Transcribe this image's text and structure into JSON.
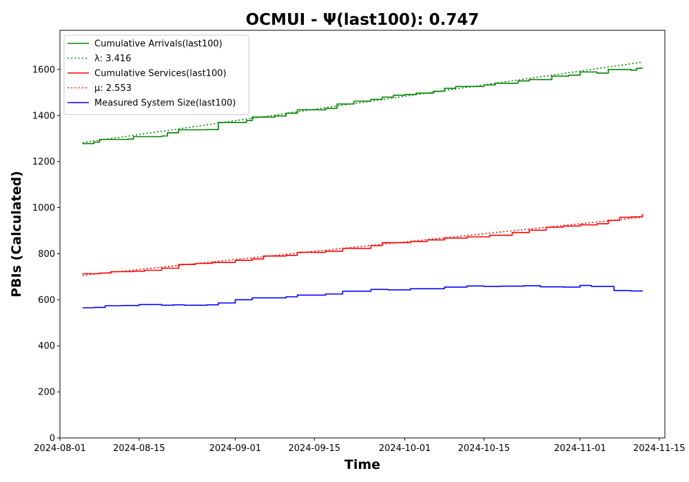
{
  "chart_data": {
    "type": "line",
    "title": "OCMUI -  Ψ(last100): 0.747",
    "xlabel": "Time",
    "ylabel": "PBIs (Calculated)",
    "xlim": [
      "2024-08-01",
      "2024-11-16"
    ],
    "ylim": [
      0,
      1770
    ],
    "xticks": [
      "2024-08-01",
      "2024-08-15",
      "2024-09-01",
      "2024-09-15",
      "2024-10-01",
      "2024-10-15",
      "2024-11-01",
      "2024-11-15"
    ],
    "yticks": [
      0,
      200,
      400,
      600,
      800,
      1000,
      1200,
      1400,
      1600
    ],
    "grid": false,
    "legend_position": "top-left",
    "series": [
      {
        "name": "Cumulative Arrivals(last100)",
        "color": "#008000",
        "style": "solid",
        "x": [
          "2024-08-05",
          "2024-08-07",
          "2024-08-08",
          "2024-08-13",
          "2024-08-14",
          "2024-08-19",
          "2024-08-20",
          "2024-08-22",
          "2024-08-27",
          "2024-08-29",
          "2024-09-03",
          "2024-09-04",
          "2024-09-08",
          "2024-09-10",
          "2024-09-12",
          "2024-09-17",
          "2024-09-19",
          "2024-09-22",
          "2024-09-25",
          "2024-09-27",
          "2024-09-29",
          "2024-10-01",
          "2024-10-03",
          "2024-10-06",
          "2024-10-08",
          "2024-10-10",
          "2024-10-15",
          "2024-10-17",
          "2024-10-21",
          "2024-10-23",
          "2024-10-27",
          "2024-10-30",
          "2024-11-01",
          "2024-11-04",
          "2024-11-06",
          "2024-11-10",
          "2024-11-11",
          "2024-11-12"
        ],
        "values": [
          1278,
          1284,
          1296,
          1298,
          1308,
          1311,
          1325,
          1338,
          1339,
          1370,
          1378,
          1393,
          1398,
          1410,
          1425,
          1431,
          1450,
          1462,
          1470,
          1480,
          1488,
          1491,
          1497,
          1505,
          1518,
          1526,
          1533,
          1540,
          1550,
          1556,
          1571,
          1575,
          1589,
          1584,
          1600,
          1597,
          1605,
          1607
        ]
      },
      {
        "name": "λ: 3.416",
        "color": "#008000",
        "style": "dotted",
        "x": [
          "2024-08-05",
          "2024-11-12"
        ],
        "values": [
          1282,
          1632
        ]
      },
      {
        "name": "Cumulative Services(last100)",
        "color": "#ff0000",
        "style": "solid",
        "x": [
          "2024-08-05",
          "2024-08-08",
          "2024-08-10",
          "2024-08-14",
          "2024-08-16",
          "2024-08-19",
          "2024-08-22",
          "2024-08-25",
          "2024-08-28",
          "2024-09-01",
          "2024-09-04",
          "2024-09-06",
          "2024-09-10",
          "2024-09-12",
          "2024-09-17",
          "2024-09-20",
          "2024-09-25",
          "2024-09-27",
          "2024-10-02",
          "2024-10-05",
          "2024-10-08",
          "2024-10-12",
          "2024-10-16",
          "2024-10-20",
          "2024-10-23",
          "2024-10-26",
          "2024-10-29",
          "2024-11-01",
          "2024-11-04",
          "2024-11-06",
          "2024-11-08",
          "2024-11-10",
          "2024-11-12"
        ],
        "values": [
          713,
          716,
          722,
          724,
          728,
          737,
          753,
          758,
          762,
          771,
          777,
          790,
          793,
          806,
          811,
          823,
          835,
          848,
          853,
          860,
          868,
          873,
          880,
          892,
          902,
          915,
          920,
          925,
          930,
          945,
          958,
          960,
          972
        ]
      },
      {
        "name": "μ: 2.553",
        "color": "#ff0000",
        "style": "dotted",
        "x": [
          "2024-08-05",
          "2024-11-12"
        ],
        "values": [
          706,
          958
        ]
      },
      {
        "name": "Measured System Size(last100)",
        "color": "#0000ff",
        "style": "solid",
        "x": [
          "2024-08-05",
          "2024-08-07",
          "2024-08-09",
          "2024-08-12",
          "2024-08-15",
          "2024-08-19",
          "2024-08-21",
          "2024-08-23",
          "2024-08-27",
          "2024-08-29",
          "2024-09-01",
          "2024-09-04",
          "2024-09-06",
          "2024-09-10",
          "2024-09-12",
          "2024-09-17",
          "2024-09-20",
          "2024-09-25",
          "2024-09-28",
          "2024-10-02",
          "2024-10-08",
          "2024-10-12",
          "2024-10-15",
          "2024-10-18",
          "2024-10-22",
          "2024-10-25",
          "2024-10-29",
          "2024-11-01",
          "2024-11-03",
          "2024-11-05",
          "2024-11-07",
          "2024-11-10",
          "2024-11-12"
        ],
        "values": [
          565,
          567,
          574,
          575,
          579,
          576,
          578,
          576,
          578,
          586,
          600,
          608,
          608,
          613,
          620,
          625,
          637,
          645,
          643,
          648,
          655,
          660,
          658,
          659,
          661,
          656,
          655,
          662,
          658,
          658,
          640,
          638,
          637
        ]
      }
    ]
  }
}
